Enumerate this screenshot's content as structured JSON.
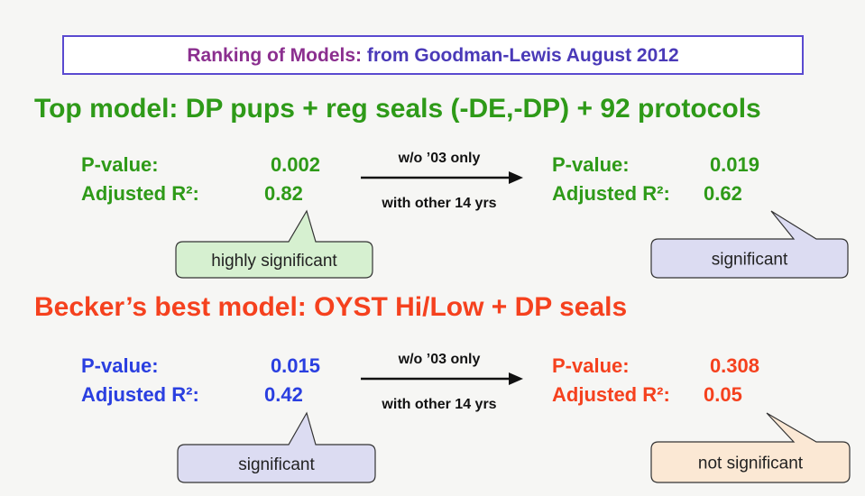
{
  "title": {
    "lead": "Ranking of Models:",
    "rest": "from Goodman-Lewis August 2012"
  },
  "sections": [
    {
      "heading": "Top model: DP pups + reg seals (-DE,-DP) + 92 protocols",
      "left": {
        "p_label": "P-value:",
        "p_value": "0.002",
        "r_label": "Adjusted R²:",
        "r_value": "0.82"
      },
      "arrow": {
        "top": "w/o ’03 only",
        "bottom": "with other 14 yrs"
      },
      "right": {
        "p_label": "P-value:",
        "p_value": "0.019",
        "r_label": "Adjusted R²:",
        "r_value": "0.62"
      },
      "left_callout": "highly significant",
      "right_callout": "significant"
    },
    {
      "heading": "Becker’s best model: OYST Hi/Low + DP seals",
      "left": {
        "p_label": "P-value:",
        "p_value": "0.015",
        "r_label": "Adjusted R²:",
        "r_value": "0.42"
      },
      "arrow": {
        "top": "w/o ’03 only",
        "bottom": "with other 14 yrs"
      },
      "right": {
        "p_label": "P-value:",
        "p_value": "0.308",
        "r_label": "Adjusted R²:",
        "r_value": "0.05"
      },
      "left_callout": "significant",
      "right_callout": "not significant"
    }
  ]
}
